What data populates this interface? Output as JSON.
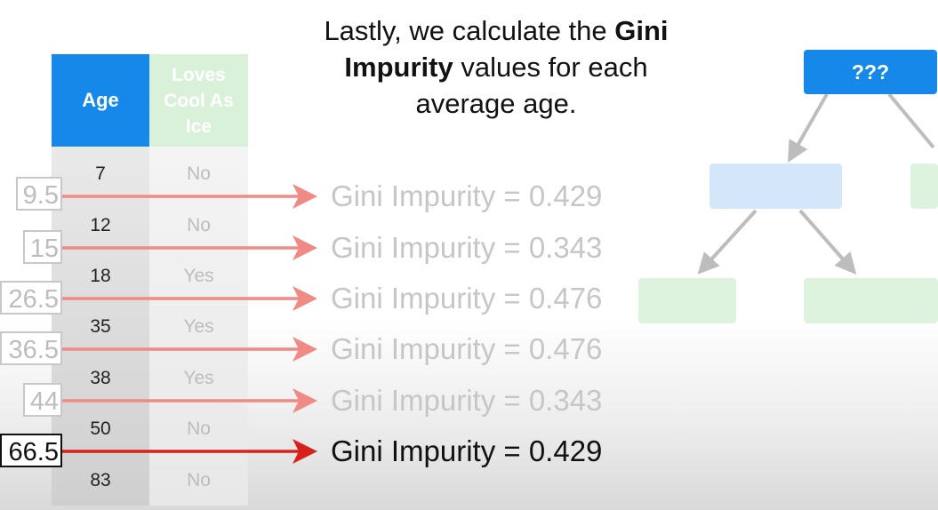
{
  "heading": {
    "line1": "Lastly, we calculate the ",
    "line1_bold": "Gini",
    "line2_bold": "Impurity",
    "line2": " values for each",
    "line3": "average age."
  },
  "table": {
    "header_age": "Age",
    "header_loves": "Loves Cool As Ice",
    "rows": [
      {
        "age": "7",
        "loves": "No"
      },
      {
        "age": "12",
        "loves": "No"
      },
      {
        "age": "18",
        "loves": "Yes"
      },
      {
        "age": "35",
        "loves": "Yes"
      },
      {
        "age": "38",
        "loves": "Yes"
      },
      {
        "age": "50",
        "loves": "No"
      },
      {
        "age": "83",
        "loves": "No"
      }
    ]
  },
  "averages": [
    {
      "value": "9.5",
      "gini": "Gini Impurity = 0.429",
      "active": false
    },
    {
      "value": "15",
      "gini": "Gini Impurity = 0.343",
      "active": false
    },
    {
      "value": "26.5",
      "gini": "Gini Impurity = 0.476",
      "active": false
    },
    {
      "value": "36.5",
      "gini": "Gini Impurity = 0.476",
      "active": false
    },
    {
      "value": "44",
      "gini": "Gini Impurity = 0.343",
      "active": false
    },
    {
      "value": "66.5",
      "gini": "Gini Impurity = 0.429",
      "active": true
    }
  ],
  "tree": {
    "root_label": "???"
  },
  "colors": {
    "accent_blue": "#1588e9",
    "arrow_faded": "#f08a85",
    "arrow_active": "#d8211c",
    "leaf_blue": "#d4e7fa",
    "leaf_green": "#ddf3dd"
  }
}
